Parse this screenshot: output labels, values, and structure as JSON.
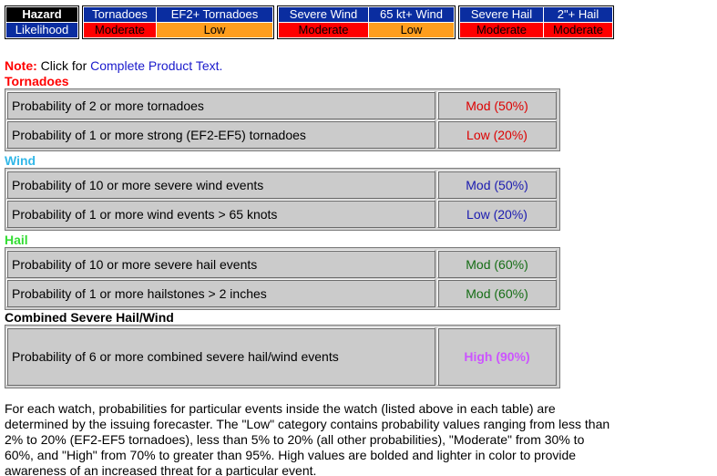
{
  "summary": {
    "header_label": "Hazard",
    "likelihood_label": "Likelihood",
    "groups": [
      {
        "cols": [
          {
            "name": "Tornadoes",
            "level": "Moderate",
            "level_class": "mod",
            "width": 79
          },
          {
            "name": "EF2+ Tornadoes",
            "level": "Low",
            "level_class": "low",
            "width": 127
          }
        ]
      },
      {
        "cols": [
          {
            "name": "Severe Wind",
            "level": "Moderate",
            "level_class": "mod",
            "width": 98
          },
          {
            "name": "65 kt+ Wind",
            "level": "Low",
            "level_class": "low",
            "width": 93
          }
        ]
      },
      {
        "cols": [
          {
            "name": "Severe Hail",
            "level": "Moderate",
            "level_class": "mod",
            "width": 91
          },
          {
            "name": "2\"+ Hail",
            "level": "Moderate",
            "level_class": "mod",
            "width": 75
          }
        ]
      }
    ]
  },
  "note": {
    "label": "Note:",
    "text": " Click for ",
    "link": "Complete Product Text."
  },
  "sections": [
    {
      "title": "Tornadoes",
      "title_class": "t-tor",
      "rows": [
        {
          "desc": "Probability of 2 or more tornadoes",
          "value": "Mod (50%)",
          "value_class": "v-red"
        },
        {
          "desc": "Probability of 1 or more strong (EF2-EF5) tornadoes",
          "value": "Low (20%)",
          "value_class": "v-red"
        }
      ]
    },
    {
      "title": "Wind",
      "title_class": "t-wind",
      "rows": [
        {
          "desc": "Probability of 10 or more severe wind events",
          "value": "Mod (50%)",
          "value_class": "v-blue"
        },
        {
          "desc": "Probability of 1 or more wind events > 65 knots",
          "value": "Low (20%)",
          "value_class": "v-blue"
        }
      ]
    },
    {
      "title": "Hail",
      "title_class": "t-hail",
      "rows": [
        {
          "desc": "Probability of 10 or more severe hail events",
          "value": "Mod (60%)",
          "value_class": "v-green"
        },
        {
          "desc": "Probability of 1 or more hailstones > 2 inches",
          "value": "Mod (60%)",
          "value_class": "v-green"
        }
      ]
    },
    {
      "title": "Combined Severe Hail/Wind",
      "title_class": "t-comb",
      "rows": [
        {
          "desc": "Probability of 6 or more combined severe hail/wind events",
          "value": "High (90%)",
          "value_class": "v-high"
        }
      ]
    }
  ],
  "footer": "For each watch, probabilities for particular events inside the watch (listed above in each table) are determined by the issuing forecaster. The \"Low\" category contains probability values ranging from less than 2% to 20% (EF2-EF5 tornadoes), less than 5% to 20% (all other probabilities), \"Moderate\" from 30% to 60%, and \"High\" from 70% to greater than 95%. High values are bolded and lighter in color to provide awareness of an increased threat for a particular event.",
  "colors": {
    "moderate": "#ff0000",
    "low": "#ff9e1e",
    "header_blue": "#0a2da0"
  }
}
